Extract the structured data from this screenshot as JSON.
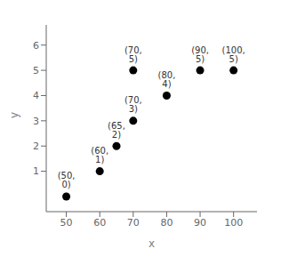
{
  "chart_data": {
    "type": "scatter",
    "x": [
      50,
      60,
      65,
      70,
      70,
      80,
      90,
      100
    ],
    "values": [
      0,
      1,
      2,
      3,
      5,
      4,
      5,
      5
    ],
    "value_labels": [
      "(50, 0)",
      "(60, 1)",
      "(65, 2)",
      "(70, 3)",
      "(70, 5)",
      "(80, 4)",
      "(90, 5)",
      "(100, 5)"
    ],
    "data_labels": true,
    "color": "#000000",
    "xlabel": "x",
    "ylabel": "y",
    "xlim": [
      44,
      107
    ],
    "ylim": [
      -0.6,
      6.8
    ],
    "xticks": [
      50,
      60,
      70,
      80,
      90,
      100
    ],
    "yticks": [
      1,
      2,
      3,
      4,
      5,
      6
    ],
    "grid": false
  }
}
